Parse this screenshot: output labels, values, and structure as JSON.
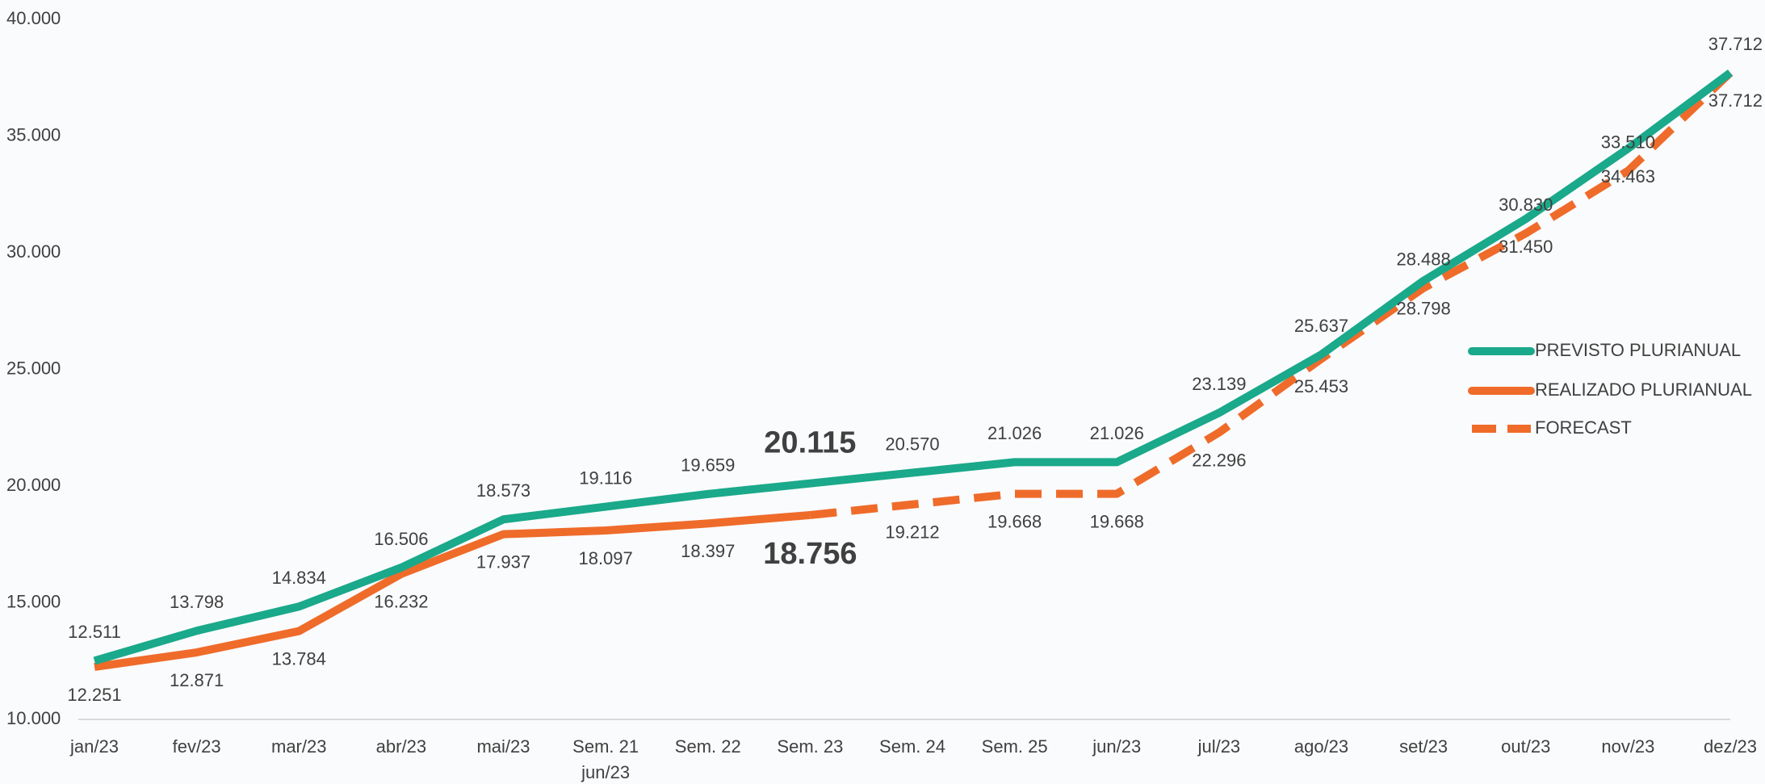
{
  "chart_data": {
    "type": "line",
    "categories": [
      "jan/23",
      "fev/23",
      "mar/23",
      "abr/23",
      "mai/23",
      "Sem. 21\njun/23",
      "Sem. 22",
      "Sem. 23",
      "Sem. 24",
      "Sem. 25",
      "jun/23",
      "jul/23",
      "ago/23",
      "set/23",
      "out/23",
      "nov/23",
      "dez/23"
    ],
    "series": [
      {
        "name": "PREVISTO PLURIANUAL",
        "color": "#1aa98a",
        "dashed": false,
        "values": [
          12511,
          13798,
          14834,
          16506,
          18573,
          19116,
          19659,
          20115,
          20570,
          21026,
          21026,
          23139,
          25637,
          28798,
          31450,
          34463,
          37712
        ],
        "value_labels": [
          "12.511",
          "13.798",
          "14.834",
          "16.506",
          "18.573",
          "19.116",
          "19.659",
          "20.115",
          "20.570",
          "21.026",
          "21.026",
          "23.139",
          "25.637",
          "28.798",
          "31.450",
          "34.463",
          "37.712"
        ]
      },
      {
        "name": "REALIZADO PLURIANUAL",
        "color": "#ef6b2a",
        "dashed": false,
        "values": [
          12251,
          12871,
          13784,
          16232,
          17937,
          18097,
          18397,
          18756,
          null,
          null,
          null,
          null,
          null,
          null,
          null,
          null,
          null
        ],
        "value_labels": [
          "12.251",
          "12.871",
          "13.784",
          "16.232",
          "17.937",
          "18.097",
          "18.397",
          "18.756",
          null,
          null,
          null,
          null,
          null,
          null,
          null,
          null,
          null
        ]
      },
      {
        "name": "FORECAST",
        "color": "#ef6b2a",
        "dashed": true,
        "values": [
          null,
          null,
          null,
          null,
          null,
          null,
          null,
          18756,
          19212,
          19668,
          19668,
          22296,
          25453,
          28488,
          30830,
          33510,
          37712
        ],
        "value_labels": [
          null,
          null,
          null,
          null,
          null,
          null,
          null,
          null,
          "19.212",
          "19.668",
          "19.668",
          "22.296",
          "25.453",
          "28.488",
          "30.830",
          "33.510",
          "37.712"
        ]
      }
    ],
    "highlight": "Sem. 23",
    "ylim": [
      10000,
      40000
    ],
    "yticks": [
      {
        "value": 10000,
        "label": "10.000"
      },
      {
        "value": 15000,
        "label": "15.000"
      },
      {
        "value": 20000,
        "label": "20.000"
      },
      {
        "value": 25000,
        "label": "25.000"
      },
      {
        "value": 30000,
        "label": "30.000"
      },
      {
        "value": 35000,
        "label": "35.000"
      },
      {
        "value": 40000,
        "label": "40.000"
      }
    ],
    "grid": false,
    "legend": "right"
  }
}
